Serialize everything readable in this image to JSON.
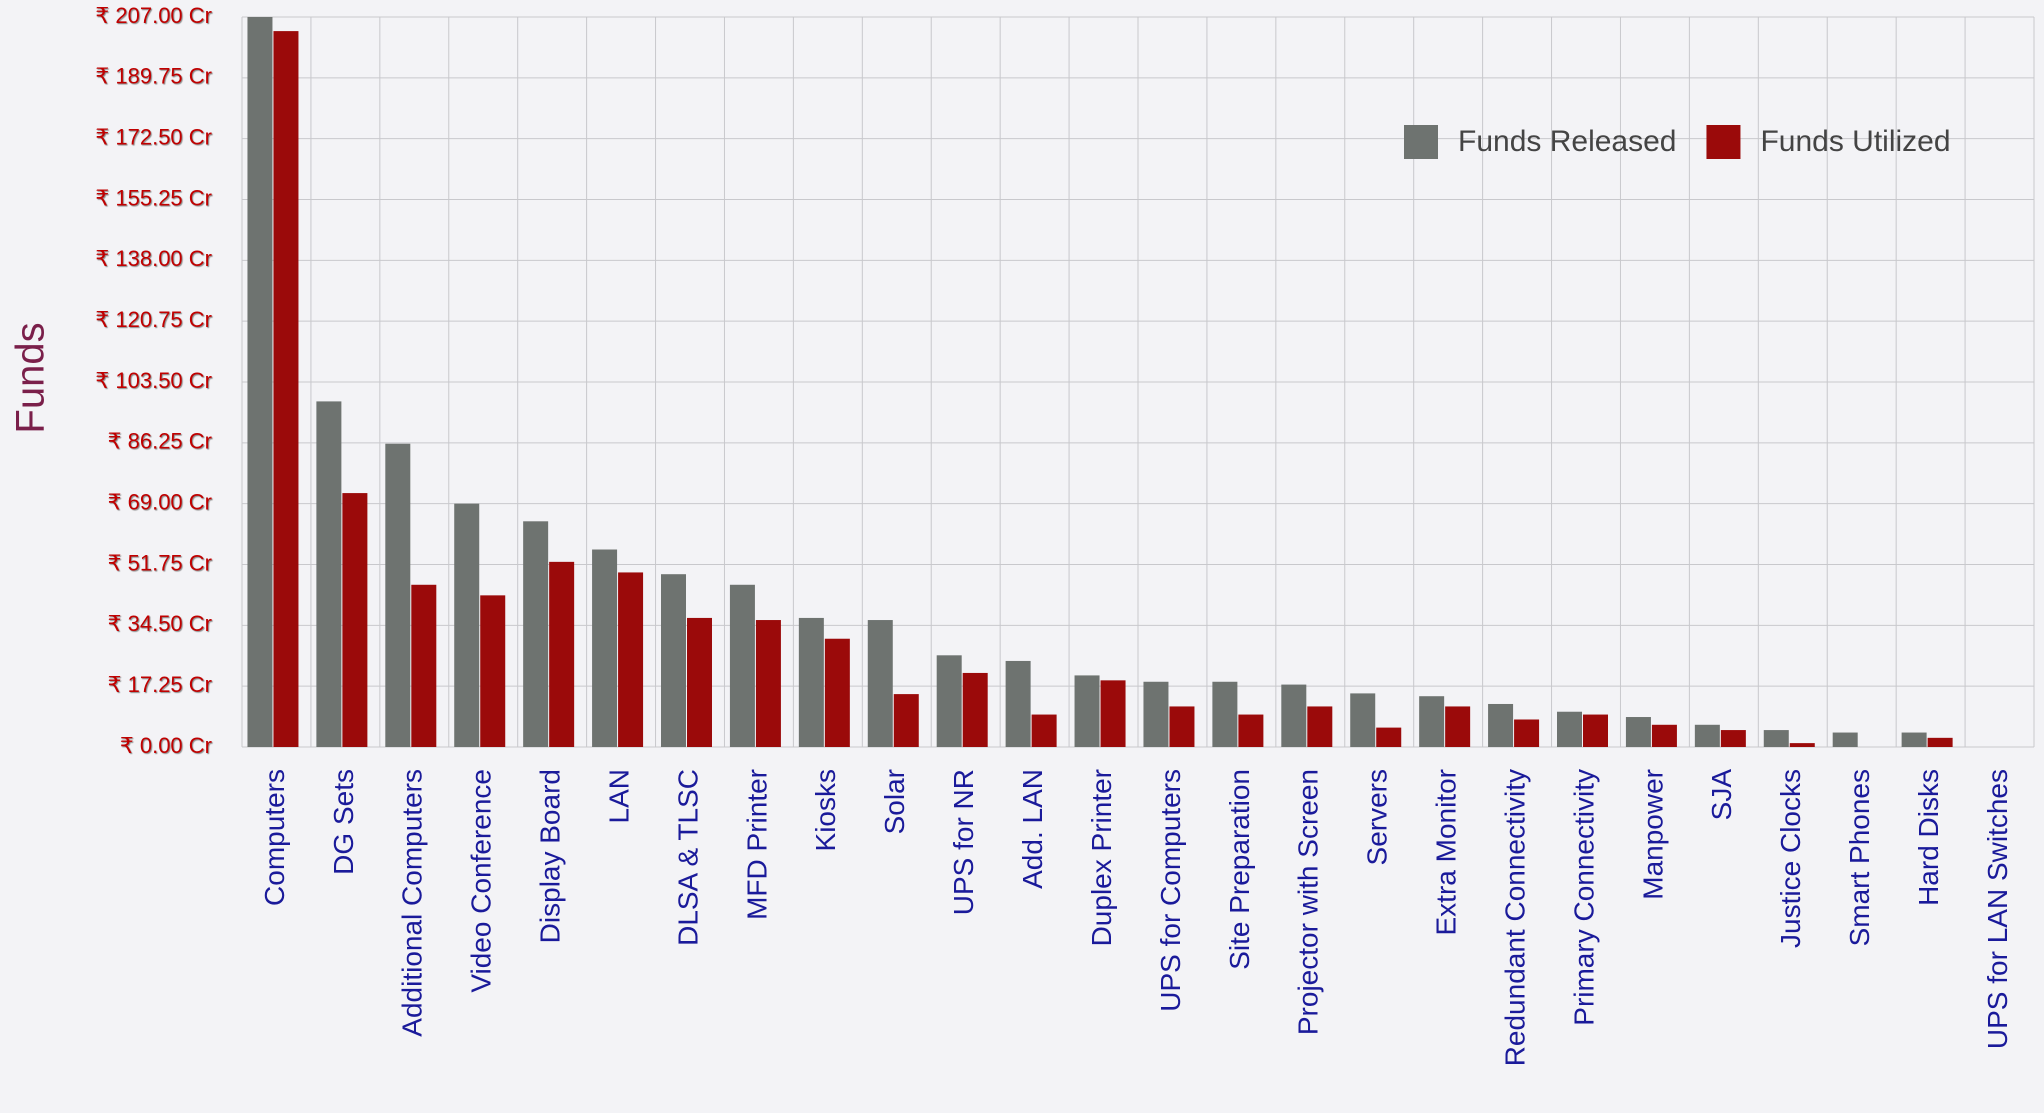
{
  "chart_data": {
    "type": "bar",
    "y_label": "Funds",
    "categories": [
      "Computers",
      "DG Sets",
      "Additional Computers",
      "Video Conference",
      "Display Board",
      "LAN",
      "DLSA & TLSC",
      "MFD Printer",
      "Kiosks",
      "Solar",
      "UPS for NR",
      "Add. LAN",
      "Duplex Printer",
      "UPS for Computers",
      "Site Preparation",
      "Projector with Screen",
      "Servers",
      "Extra Monitor",
      "Redundant Connectivity",
      "Primary Connectivity",
      "Manpower",
      "SJA",
      "Justice Clocks",
      "Smart Phones",
      "Hard Disks",
      "UPS for LAN Switches"
    ],
    "series": [
      {
        "name": "Funds Released",
        "color": "#6e7370",
        "values": [
          207,
          98,
          86,
          69,
          64,
          56,
          49,
          46,
          36.6,
          36,
          26,
          24.4,
          20.3,
          18.5,
          18.5,
          17.7,
          15.2,
          14.4,
          12.2,
          10,
          8.5,
          6.3,
          4.8,
          4.1,
          4.1,
          0
        ]
      },
      {
        "name": "Funds Utilized",
        "color": "#9b0a0a",
        "values": [
          203,
          72,
          46,
          43,
          52.5,
          49.5,
          36.6,
          36,
          30.7,
          15,
          21,
          9.2,
          18.9,
          11.5,
          9.2,
          11.5,
          5.5,
          11.5,
          7.8,
          9.2,
          6.3,
          4.8,
          1.1,
          0,
          2.6,
          0
        ]
      }
    ],
    "ylim": [
      0,
      207
    ],
    "yticks": [
      {
        "value": 0,
        "label": "₹ 0.00 Cr"
      },
      {
        "value": 17.25,
        "label": "₹ 17.25 Cr"
      },
      {
        "value": 34.5,
        "label": "₹ 34.50 Cr"
      },
      {
        "value": 51.75,
        "label": "₹ 51.75 Cr"
      },
      {
        "value": 69,
        "label": "₹ 69.00 Cr"
      },
      {
        "value": 86.25,
        "label": "₹ 86.25 Cr"
      },
      {
        "value": 103.5,
        "label": "₹ 103.50 Cr"
      },
      {
        "value": 120.75,
        "label": "₹ 120.75 Cr"
      },
      {
        "value": 138,
        "label": "₹ 138.00 Cr"
      },
      {
        "value": 155.25,
        "label": "₹ 155.25 Cr"
      },
      {
        "value": 172.5,
        "label": "₹ 172.50 Cr"
      },
      {
        "value": 189.75,
        "label": "₹ 189.75 Cr"
      },
      {
        "value": 207,
        "label": "₹ 207.00 Cr"
      }
    ],
    "grid": true,
    "legend": "top-right"
  }
}
